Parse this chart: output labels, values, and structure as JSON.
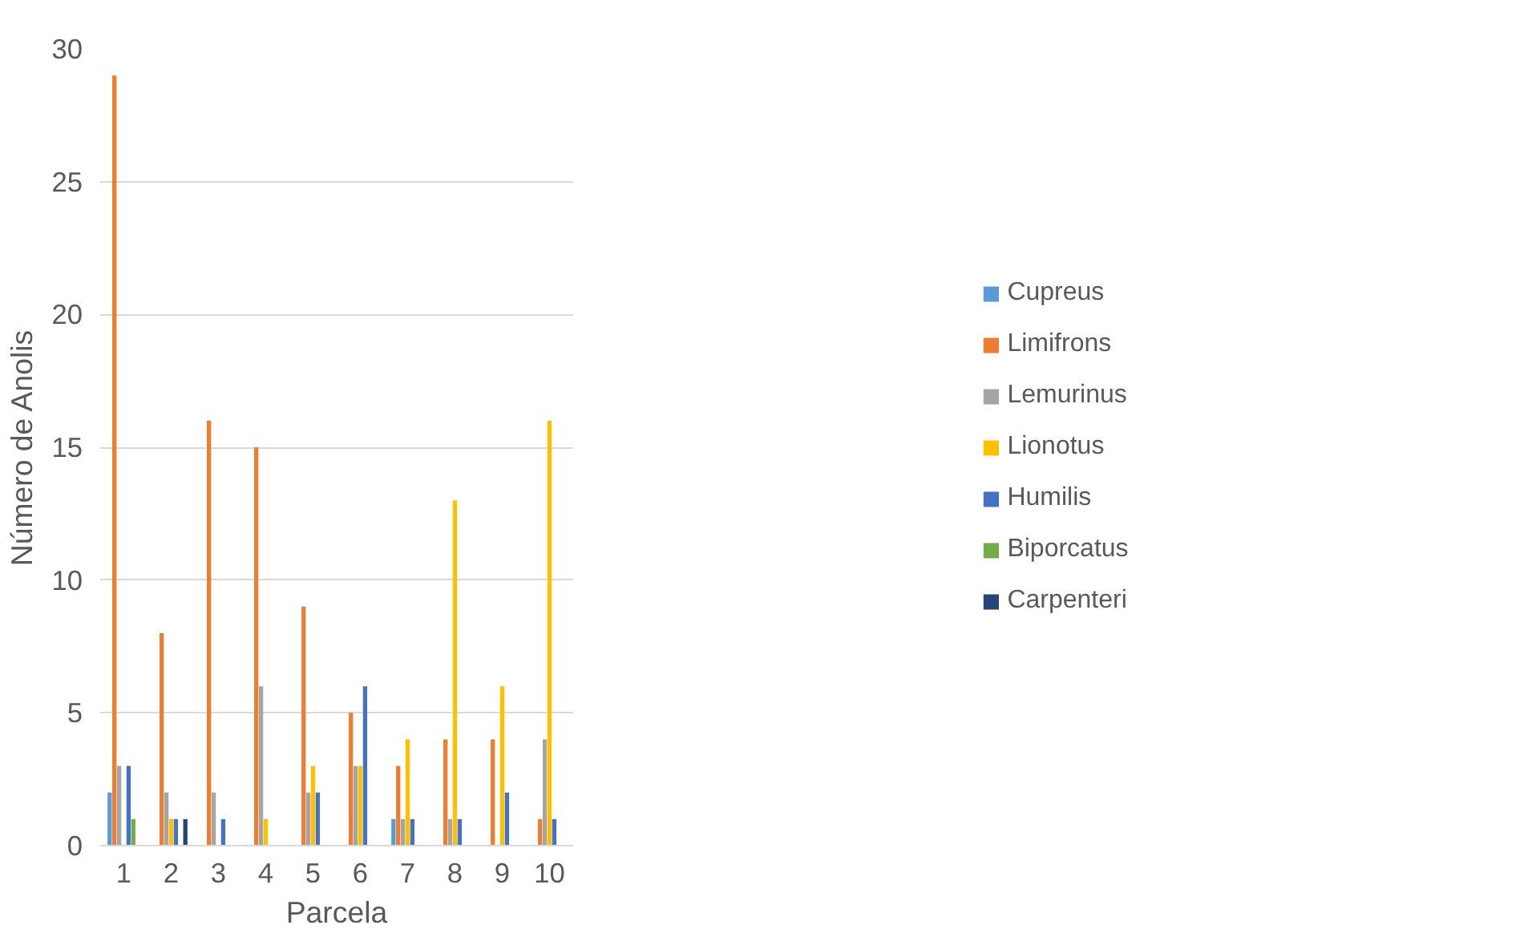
{
  "chart_data": {
    "type": "bar",
    "xlabel": "Parcela",
    "ylabel": "Número de Anolis",
    "categories": [
      "1",
      "2",
      "3",
      "4",
      "5",
      "6",
      "7",
      "8",
      "9",
      "10"
    ],
    "ylim": [
      0,
      30
    ],
    "yticks": [
      0,
      5,
      10,
      15,
      20,
      25,
      30
    ],
    "grid": "y",
    "legend": "right",
    "series": [
      {
        "name": "Cupreus",
        "color": "#5b9bd5",
        "values": [
          2,
          0,
          0,
          0,
          0,
          0,
          1,
          0,
          0,
          0
        ]
      },
      {
        "name": "Limifrons",
        "color": "#ed7d31",
        "values": [
          29,
          8,
          16,
          15,
          9,
          5,
          3,
          4,
          4,
          1
        ]
      },
      {
        "name": "Lemurinus",
        "color": "#a5a5a5",
        "values": [
          3,
          2,
          2,
          6,
          2,
          3,
          1,
          1,
          0,
          4
        ]
      },
      {
        "name": "Lionotus",
        "color": "#ffc000",
        "values": [
          0,
          1,
          0,
          1,
          3,
          3,
          4,
          13,
          6,
          16
        ]
      },
      {
        "name": "Humilis",
        "color": "#4472c4",
        "values": [
          3,
          1,
          1,
          0,
          2,
          6,
          1,
          1,
          2,
          1
        ]
      },
      {
        "name": "Biporcatus",
        "color": "#70ad47",
        "values": [
          1,
          0,
          0,
          0,
          0,
          0,
          0,
          0,
          0,
          0
        ]
      },
      {
        "name": "Carpenteri",
        "color": "#264478",
        "values": [
          0,
          1,
          0,
          0,
          0,
          0,
          0,
          0,
          0,
          0
        ]
      }
    ]
  }
}
